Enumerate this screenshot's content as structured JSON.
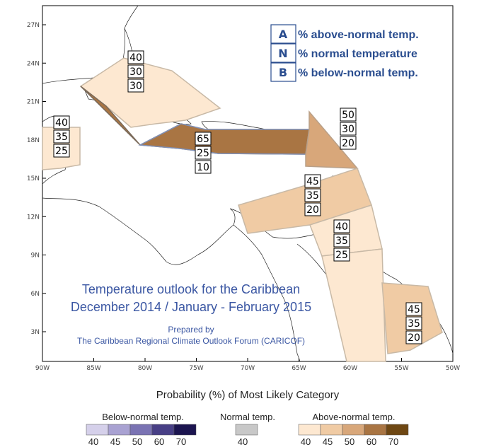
{
  "map": {
    "lat_labels": [
      "27N",
      "24N",
      "21N",
      "18N",
      "15N",
      "12N",
      "9N",
      "6N",
      "3N"
    ],
    "lon_labels": [
      "90W",
      "85W",
      "80W",
      "75W",
      "70W",
      "65W",
      "60W",
      "55W",
      "50W"
    ]
  },
  "region_boxes": [
    {
      "id": "bahamas",
      "values": [
        "40",
        "30",
        "30"
      ]
    },
    {
      "id": "belize",
      "values": [
        "40",
        "35",
        "25"
      ]
    },
    {
      "id": "greater-antilles",
      "values": [
        "65",
        "25",
        "10"
      ]
    },
    {
      "id": "leeward",
      "values": [
        "50",
        "30",
        "20"
      ]
    },
    {
      "id": "windward",
      "values": [
        "45",
        "35",
        "20"
      ]
    },
    {
      "id": "guyana",
      "values": [
        "40",
        "35",
        "25"
      ]
    },
    {
      "id": "suriname",
      "values": [
        "45",
        "35",
        "20"
      ]
    }
  ],
  "key_legend": [
    {
      "key": "A",
      "desc": "% above-normal temp."
    },
    {
      "key": "N",
      "desc": "% normal temperature"
    },
    {
      "key": "B",
      "desc": "% below-normal temp."
    }
  ],
  "title": {
    "line1": "Temperature outlook for the Caribbean",
    "line2": "December 2014 / January - February 2015",
    "prepared": "Prepared by",
    "org": "The Caribbean Regional Climate Outlook Forum (CARICOF)"
  },
  "scale": {
    "title": "Probability (%) of Most Likely Category",
    "below": {
      "caption": "Below-normal temp.",
      "labels": [
        "40",
        "45",
        "50",
        "60",
        "70"
      ],
      "colors": [
        "#d5d0ea",
        "#a9a2d2",
        "#7a73b3",
        "#483f86",
        "#1c1550"
      ]
    },
    "normal": {
      "caption": "Normal temp.",
      "labels": [
        "40"
      ],
      "colors": [
        "#c8c8c8"
      ]
    },
    "above": {
      "caption": "Above-normal temp.",
      "labels": [
        "40",
        "45",
        "50",
        "60",
        "70"
      ],
      "colors": [
        "#fde8d1",
        "#f0cba4",
        "#d8a77a",
        "#a97543",
        "#6e4713"
      ]
    }
  },
  "region_colors": {
    "above40": "#fde8d1",
    "above45": "#f0cba4",
    "above50": "#d8a77a",
    "above60": "#a97543",
    "outline": "#7f90b8"
  }
}
